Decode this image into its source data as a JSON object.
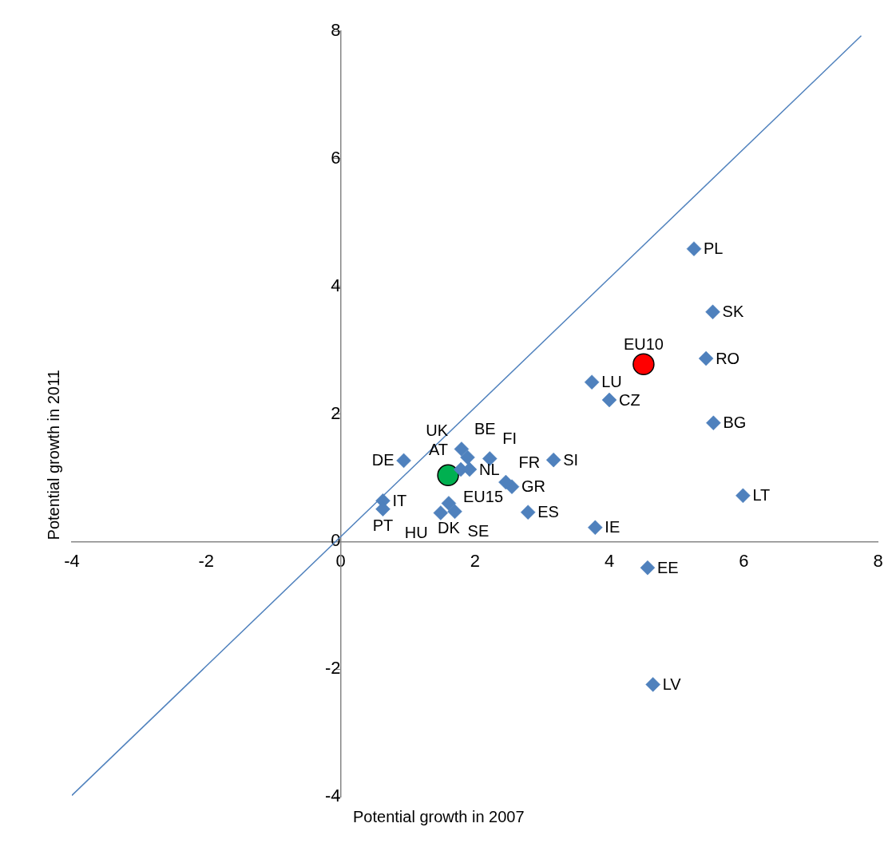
{
  "chart_data": {
    "type": "scatter",
    "xlabel": "Potential growth in 2007",
    "ylabel": "Potential growth in 2011",
    "xlim": [
      -4,
      8
    ],
    "ylim": [
      -4,
      8
    ],
    "xticks": [
      -4,
      -2,
      0,
      2,
      4,
      6,
      8
    ],
    "yticks": [
      -4,
      -2,
      0,
      2,
      4,
      6,
      8
    ],
    "grid": false,
    "legend": false,
    "series": [
      {
        "type": "line",
        "color": "#4f81bd",
        "marker": "none",
        "x": [
          -4,
          7.75
        ],
        "values": [
          -3.98,
          7.93
        ]
      },
      {
        "color": "#4f81bd",
        "marker": "diamond",
        "x": [
          5.26,
          5.54,
          5.44,
          5.55,
          5.99,
          3.74,
          4.0,
          3.17,
          3.79,
          4.57,
          4.65,
          2.79,
          2.55,
          2.46,
          0.94,
          1.8,
          1.89,
          1.79,
          1.92,
          2.22,
          0.63,
          0.63,
          1.61,
          1.49,
          1.7
        ],
        "values": [
          4.59,
          3.6,
          2.87,
          1.86,
          0.72,
          2.5,
          2.22,
          1.28,
          0.22,
          -0.41,
          -2.24,
          0.46,
          0.86,
          0.93,
          1.27,
          1.45,
          1.32,
          1.13,
          1.13,
          1.3,
          0.64,
          0.51,
          0.6,
          0.45,
          0.47
        ]
      },
      {
        "color": "#00b050",
        "marker": "circle",
        "x": [
          1.6
        ],
        "values": [
          1.04
        ]
      },
      {
        "color": "#ff0000",
        "marker": "circle",
        "x": [
          4.51
        ],
        "values": [
          2.78
        ]
      }
    ],
    "annotations": [
      {
        "text": "EU15",
        "x": 1.6,
        "y": 1.04
      },
      {
        "text": "EU10",
        "x": 4.51,
        "y": 2.78
      },
      {
        "text": "PL",
        "x": 5.26,
        "y": 4.59
      },
      {
        "text": "SK",
        "x": 5.54,
        "y": 3.6
      },
      {
        "text": "RO",
        "x": 5.44,
        "y": 2.87
      },
      {
        "text": "BG",
        "x": 5.55,
        "y": 1.86
      },
      {
        "text": "LT",
        "x": 5.99,
        "y": 0.72
      },
      {
        "text": "LU",
        "x": 3.74,
        "y": 2.5
      },
      {
        "text": "CZ",
        "x": 4.0,
        "y": 2.22
      },
      {
        "text": "SI",
        "x": 3.17,
        "y": 1.28
      },
      {
        "text": "IE",
        "x": 3.79,
        "y": 0.22
      },
      {
        "text": "EE",
        "x": 4.57,
        "y": -0.41
      },
      {
        "text": "LV",
        "x": 4.65,
        "y": -2.24
      },
      {
        "text": "ES",
        "x": 2.79,
        "y": 0.46
      },
      {
        "text": "GR",
        "x": 2.55,
        "y": 0.86
      },
      {
        "text": "FR",
        "x": 2.46,
        "y": 0.93
      },
      {
        "text": "DE",
        "x": 0.94,
        "y": 1.27
      },
      {
        "text": "BE",
        "x": 1.8,
        "y": 1.45
      },
      {
        "text": "UK",
        "x": 1.89,
        "y": 1.32
      },
      {
        "text": "AT",
        "x": 1.79,
        "y": 1.13
      },
      {
        "text": "NL",
        "x": 1.92,
        "y": 1.13
      },
      {
        "text": "FI",
        "x": 2.22,
        "y": 1.3
      },
      {
        "text": "IT",
        "x": 0.63,
        "y": 0.64
      },
      {
        "text": "PT",
        "x": 0.63,
        "y": 0.51
      },
      {
        "text": "DK",
        "x": 1.61,
        "y": 0.6
      },
      {
        "text": "SE",
        "x": 1.7,
        "y": 0.47
      },
      {
        "text": "HU",
        "x": 1.49,
        "y": 0.45
      }
    ]
  }
}
